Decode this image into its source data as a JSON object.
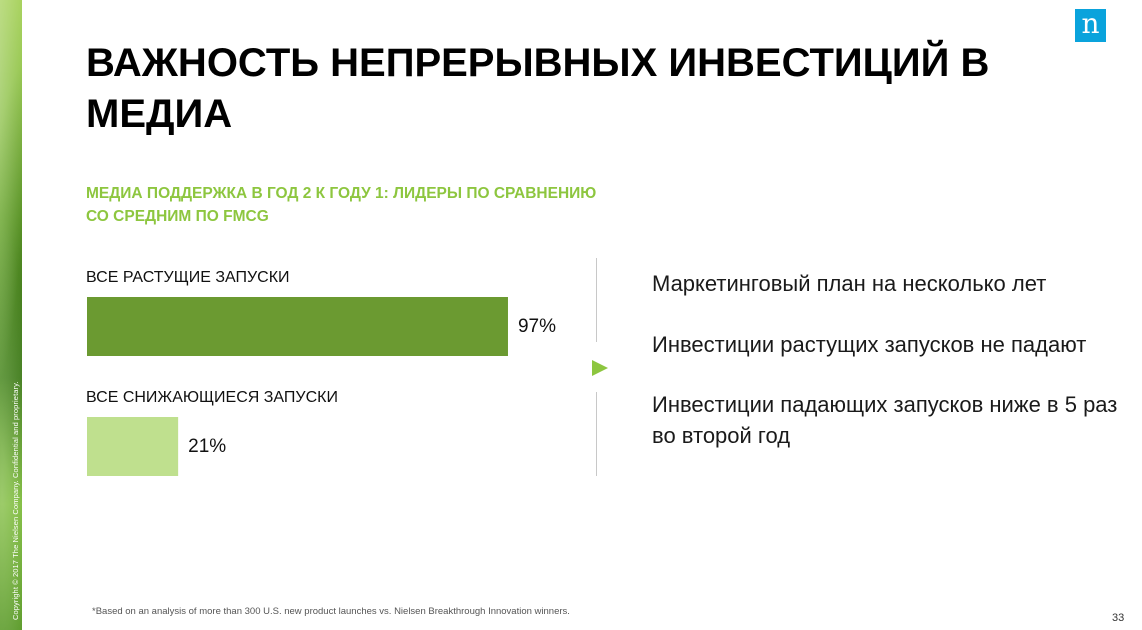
{
  "copyright": "Copyright © 2017 The Nielsen Company. Confidential and proprietary.",
  "logo": {
    "letter": "n",
    "color": "#0aa3dc"
  },
  "title": "ВАЖНОСТЬ НЕПРЕРЫВНЫХ ИНВЕСТИЦИЙ В МЕДИА",
  "subtitle": "МЕДИА ПОДДЕРЖКА В ГОД 2 К ГОДУ 1: ЛИДЕРЫ ПО СРАВНЕНИЮ СО СРЕДНИМ ПО FMCG",
  "chart_data": {
    "type": "bar",
    "orientation": "horizontal",
    "categories": [
      "ВСЕ РАСТУЩИЕ ЗАПУСКИ",
      "ВСЕ СНИЖАЮЩИЕСЯ ЗАПУСКИ"
    ],
    "values": [
      97,
      21
    ],
    "value_labels": [
      "97%",
      "21%"
    ],
    "colors": [
      "#6b9a31",
      "#bfe08e"
    ],
    "xlim": [
      0,
      100
    ],
    "grid": false
  },
  "points": [
    "Маркетинговый план на несколько лет",
    "Инвестиции растущих запусков не падают",
    "Инвестиции падающих запусков ниже в 5 раз во второй год"
  ],
  "accent_color": "#8dc63f",
  "footnote": "*Based on an analysis of more than 300 U.S. new product launches vs. Nielsen Breakthrough Innovation winners.",
  "page_number": "33"
}
